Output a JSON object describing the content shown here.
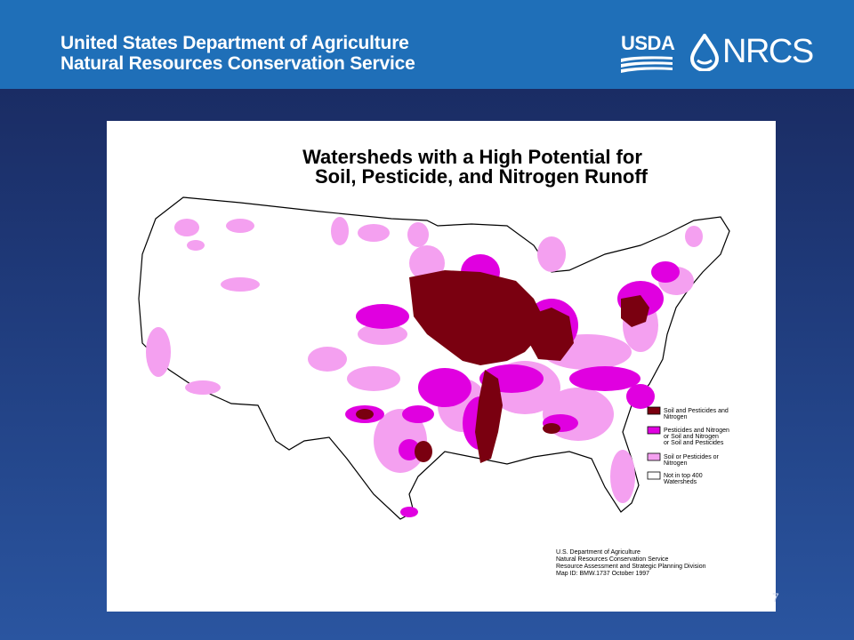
{
  "header": {
    "line1": "United States Department of Agriculture",
    "line2": "Natural Resources Conservation Service",
    "usda_logo_text": "USDA",
    "nrcs_logo_text": "NRCS"
  },
  "map": {
    "title_line1": "Watersheds with a High Potential for",
    "title_line2": "Soil, Pesticide, and Nitrogen Runoff",
    "legend": [
      {
        "color": "#7a0010",
        "label_lines": [
          "Soil and Pesticides and",
          "Nitrogen"
        ]
      },
      {
        "color": "#e000e0",
        "label_lines": [
          "Pesticides and Nitrogen",
          "or Soil and Nitrogen",
          "or Soil and Pesticides"
        ]
      },
      {
        "color": "#f4a0f0",
        "label_lines": [
          "Soil or Pesticides or",
          "Nitrogen"
        ]
      },
      {
        "color": "#ffffff",
        "label_lines": [
          "Not in top 400",
          "Watersheds"
        ]
      }
    ],
    "credit_lines": [
      "U.S. Department of Agriculture",
      "Natural Resources Conservation Service",
      "Resource Assessment and Strategic Planning Division",
      "Map ID: BMW.1737    October 1997"
    ]
  },
  "page_number": "7"
}
